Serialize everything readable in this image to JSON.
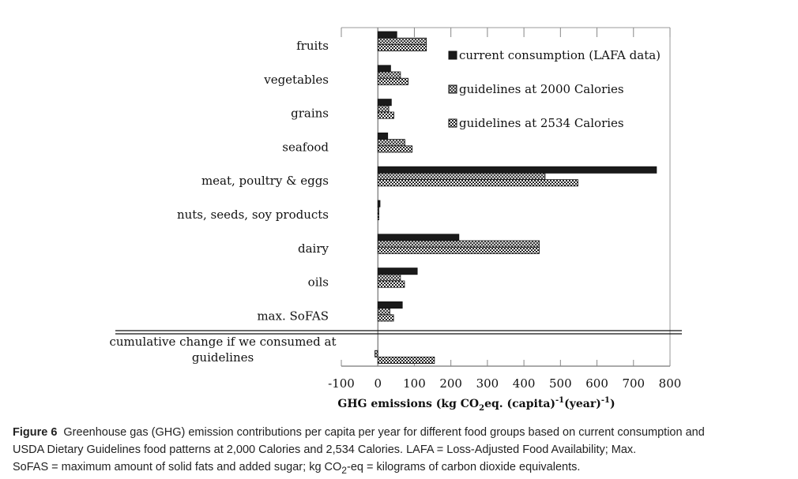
{
  "chart_data": {
    "type": "bar",
    "orientation": "horizontal",
    "categories": [
      "fruits",
      "vegetables",
      "grains",
      "seafood",
      "meat, poultry & eggs",
      "nuts, seeds, soy products",
      "dairy",
      "oils",
      "max. SoFAS"
    ],
    "summary_category": {
      "label_line1": "cumulative change if we consumed at",
      "label_line2": "guidelines",
      "values": [
        null,
        -8,
        155
      ]
    },
    "series": [
      {
        "name": "current consumption (LAFA data)",
        "pattern": "solid",
        "values": [
          52,
          35,
          37,
          27,
          763,
          6,
          222,
          108,
          67
        ]
      },
      {
        "name": "guidelines at 2000 Calories",
        "pattern": "crosshatch",
        "values": [
          133,
          62,
          30,
          74,
          458,
          3,
          442,
          62,
          33
        ]
      },
      {
        "name": "guidelines at 2534 Calories",
        "pattern": "checker",
        "values": [
          133,
          83,
          44,
          94,
          548,
          3,
          442,
          73,
          43
        ]
      }
    ],
    "x_ticks": [
      "-100",
      "0",
      "100",
      "200",
      "300",
      "400",
      "500",
      "600",
      "700",
      "800"
    ],
    "xlim": [
      -100,
      800
    ],
    "xlabel_parts": [
      "GHG emissions  (kg CO",
      "2",
      "eq. (capita)",
      "-1",
      "(year)",
      "-1",
      ")"
    ],
    "legend_position": "top-right",
    "grid": "vertical major ticks"
  },
  "caption": {
    "figure_label": "Figure 6",
    "text_line1": "Greenhouse gas (GHG) emission contributions per capita per year for different food groups based on current consumption and",
    "text_line2": "USDA Dietary Guidelines food patterns at 2,000 Calories and 2,534 Calories. LAFA = Loss-Adjusted Food Availability; Max.",
    "text_line3_a": "SoFAS = maximum amount of solid fats and added sugar; kg CO",
    "text_line3_sub": "2",
    "text_line3_b": "-eq = kilograms of carbon dioxide equivalents."
  }
}
